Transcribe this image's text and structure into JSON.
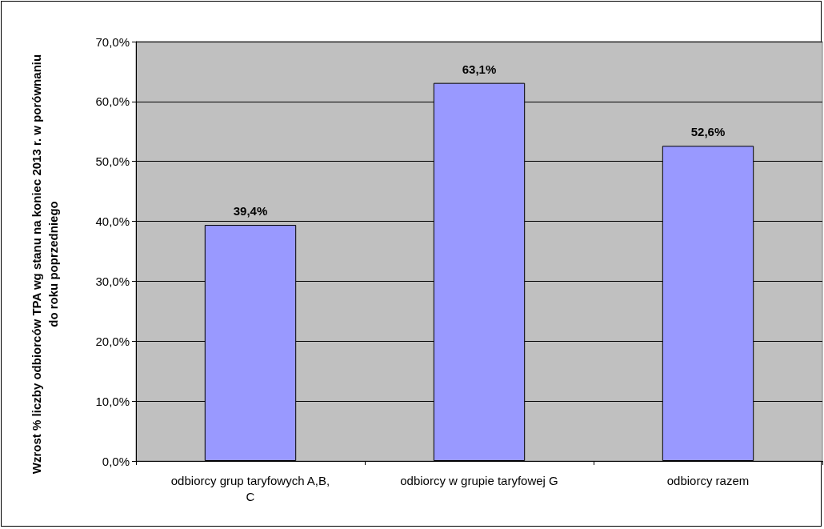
{
  "chart_data": {
    "type": "bar",
    "ylabel": "Wzrost % liczby odbiorców TPA wg stanu na koniec 2013 r. w porównaniu do roku poprzedniego",
    "categories": [
      "odbiorcy grup taryfowych A,B,C",
      "odbiorcy w grupie taryfowej G",
      "odbiorcy razem"
    ],
    "values": [
      39.4,
      63.1,
      52.6
    ],
    "value_labels": [
      "39,4%",
      "63,1%",
      "52,6%"
    ],
    "color": "#9999ff",
    "ylim": [
      0,
      70
    ],
    "yticks": [
      {
        "value": 0,
        "label": "0,0%"
      },
      {
        "value": 10,
        "label": "10,0%"
      },
      {
        "value": 20,
        "label": "20,0%"
      },
      {
        "value": 30,
        "label": "30,0%"
      },
      {
        "value": 40,
        "label": "40,0%"
      },
      {
        "value": 50,
        "label": "50,0%"
      },
      {
        "value": 60,
        "label": "60,0%"
      },
      {
        "value": 70,
        "label": "70,0%"
      }
    ],
    "grid": "y"
  }
}
